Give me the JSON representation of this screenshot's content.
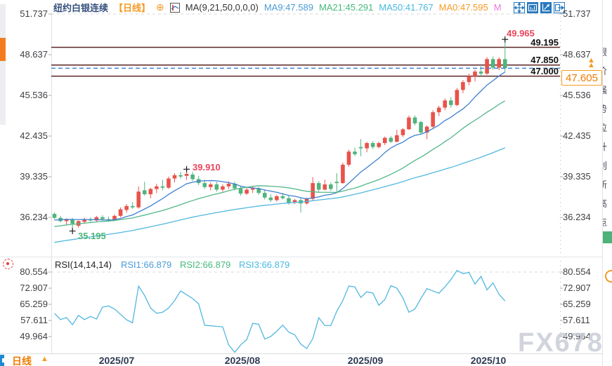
{
  "header": {
    "title": "纽约白银连续",
    "period_tag": "【日线】",
    "ma_label": "MA(9,21,50,0,0,0)",
    "ma_items": [
      {
        "label": "MA9:47.589",
        "color": "#4a9bd6"
      },
      {
        "label": "MA21:45.291",
        "color": "#45b97c"
      },
      {
        "label": "MA50:41.767",
        "color": "#49b8e0"
      },
      {
        "label": "MA0:47.595",
        "color": "#f59a23"
      },
      {
        "label": "M",
        "color": "#e87ad4"
      }
    ]
  },
  "levels": {
    "labels": [
      "49.195",
      "47.850",
      "47.000"
    ],
    "current_label": "47.605"
  },
  "annotations": {
    "session_high": "49.965",
    "july_peak": "39.910",
    "july_low": "35.195"
  },
  "rsi_legend": {
    "header": "RSI(14,14,14)",
    "rsi1": "RSI1:66.879",
    "rsi2": "RSI2:66.879",
    "rsi3": "RSI3:66.879"
  },
  "bottom": {
    "period": "日线",
    "period_arrow": "▲"
  },
  "watermark": "FX678",
  "right_edge_chars": "银价强势拉升创新高点",
  "colors": {
    "up_candle": "#e8534b",
    "down_candle": "#4fb47d",
    "ma9": "#3f7fd0",
    "ma21": "#52b788",
    "ma50": "#52b7e0",
    "rsi_line": "#52b7e0",
    "level_line": "#5c2424",
    "current_price_line": "#3f7fd0",
    "accent_orange": "#f59a23",
    "toolbar_blue": "#2878be"
  },
  "chart_data": {
    "type": "candlestick",
    "symbol": "纽约白银连续",
    "interval": "日线",
    "title": "纽约白银连续【日线】",
    "y_ticks_main": [
      51.737,
      48.637,
      45.536,
      42.435,
      39.335,
      36.234
    ],
    "y_ticks_rsi": [
      80.554,
      72.907,
      65.259,
      57.611,
      49.964
    ],
    "x_axis_labels": [
      "2025/07",
      "2025/08",
      "2025/09",
      "2025/10"
    ],
    "horizontal_levels": [
      49.195,
      47.85,
      47.0
    ],
    "current_price": 47.605,
    "ma_readout": {
      "ma9": 47.589,
      "ma21": 45.291,
      "ma50": 41.767,
      "ma0": 47.595
    },
    "rsi_readout": {
      "rsi1": 66.879,
      "rsi2": 66.879,
      "rsi3": 66.879
    },
    "marker_high": 49.965,
    "marker_peak": 39.91,
    "marker_low": 35.195,
    "ma_periods": [
      9,
      21,
      50
    ],
    "ma_prehistory": {
      "start": 32.2,
      "end": 36.3,
      "count": 50
    },
    "candles_ohlc": [
      [
        36.5,
        36.6,
        36.1,
        36.2
      ],
      [
        36.2,
        36.35,
        35.85,
        35.95
      ],
      [
        35.95,
        36.15,
        35.7,
        36.1
      ],
      [
        36.05,
        36.2,
        35.2,
        35.75
      ],
      [
        35.6,
        36.0,
        35.45,
        35.95
      ],
      [
        35.9,
        36.2,
        35.75,
        36.1
      ],
      [
        36.1,
        36.25,
        35.9,
        36.0
      ],
      [
        36.0,
        36.35,
        35.9,
        36.25
      ],
      [
        36.25,
        36.4,
        36.0,
        36.1
      ],
      [
        36.1,
        36.3,
        35.9,
        36.0
      ],
      [
        36.0,
        36.45,
        35.95,
        36.35
      ],
      [
        36.35,
        37.0,
        36.25,
        36.85
      ],
      [
        36.8,
        37.25,
        36.6,
        37.1
      ],
      [
        37.1,
        37.4,
        36.9,
        37.0
      ],
      [
        37.0,
        38.6,
        36.9,
        38.2
      ],
      [
        38.3,
        38.95,
        37.9,
        38.0
      ],
      [
        38.0,
        38.5,
        37.7,
        38.4
      ],
      [
        38.4,
        38.8,
        38.1,
        38.6
      ],
      [
        38.6,
        39.1,
        38.3,
        38.5
      ],
      [
        38.5,
        39.35,
        38.4,
        39.2
      ],
      [
        39.2,
        39.6,
        38.9,
        39.45
      ],
      [
        39.45,
        39.7,
        39.2,
        39.35
      ],
      [
        39.4,
        39.91,
        39.1,
        39.55
      ],
      [
        39.5,
        39.7,
        39.0,
        39.15
      ],
      [
        39.15,
        39.4,
        38.7,
        38.85
      ],
      [
        38.85,
        39.1,
        38.4,
        38.55
      ],
      [
        38.55,
        38.9,
        38.3,
        38.75
      ],
      [
        38.75,
        38.95,
        38.2,
        38.35
      ],
      [
        38.35,
        38.75,
        38.2,
        38.6
      ],
      [
        38.6,
        39.0,
        38.4,
        38.8
      ],
      [
        38.8,
        38.95,
        38.3,
        38.45
      ],
      [
        38.45,
        38.6,
        37.9,
        38.05
      ],
      [
        38.05,
        38.5,
        37.95,
        38.35
      ],
      [
        38.35,
        38.6,
        38.1,
        38.45
      ],
      [
        38.45,
        38.55,
        37.95,
        38.1
      ],
      [
        38.1,
        38.3,
        37.6,
        37.75
      ],
      [
        37.75,
        38.0,
        37.4,
        37.55
      ],
      [
        37.55,
        37.95,
        37.45,
        37.85
      ],
      [
        37.85,
        38.1,
        37.6,
        37.7
      ],
      [
        37.7,
        37.9,
        37.2,
        37.35
      ],
      [
        37.35,
        37.65,
        37.25,
        37.55
      ],
      [
        37.55,
        37.75,
        36.6,
        37.3
      ],
      [
        37.3,
        37.75,
        37.2,
        37.65
      ],
      [
        37.65,
        39.3,
        37.55,
        38.85
      ],
      [
        38.85,
        39.0,
        38.2,
        38.35
      ],
      [
        38.35,
        39.1,
        38.3,
        38.75
      ],
      [
        38.75,
        38.9,
        38.25,
        38.4
      ],
      [
        38.95,
        39.6,
        38.1,
        38.85
      ],
      [
        38.85,
        40.4,
        38.8,
        40.25
      ],
      [
        40.25,
        41.4,
        40.1,
        41.25
      ],
      [
        41.25,
        41.55,
        40.9,
        41.05
      ],
      [
        41.6,
        42.2,
        40.9,
        41.5
      ],
      [
        41.5,
        42.0,
        41.2,
        41.9
      ],
      [
        41.9,
        42.05,
        41.45,
        41.6
      ],
      [
        41.6,
        42.0,
        41.5,
        41.9
      ],
      [
        41.9,
        42.4,
        41.75,
        42.3
      ],
      [
        42.3,
        42.45,
        41.9,
        42.0
      ],
      [
        42.0,
        42.9,
        41.95,
        42.5
      ],
      [
        42.5,
        43.05,
        42.35,
        42.95
      ],
      [
        42.95,
        44.0,
        42.9,
        43.85
      ],
      [
        43.85,
        44.0,
        43.25,
        43.4
      ],
      [
        43.5,
        43.6,
        42.55,
        42.7
      ],
      [
        42.7,
        43.25,
        42.2,
        43.15
      ],
      [
        43.15,
        44.4,
        43.05,
        44.25
      ],
      [
        44.25,
        44.75,
        43.95,
        44.6
      ],
      [
        44.6,
        45.3,
        44.4,
        45.15
      ],
      [
        45.15,
        45.4,
        44.6,
        44.8
      ],
      [
        44.8,
        46.1,
        44.7,
        45.95
      ],
      [
        45.95,
        46.7,
        45.7,
        46.55
      ],
      [
        46.55,
        47.2,
        46.3,
        47.0
      ],
      [
        47.0,
        47.5,
        46.6,
        47.35
      ],
      [
        47.35,
        47.75,
        47.0,
        47.2
      ],
      [
        47.2,
        48.45,
        47.1,
        48.3
      ],
      [
        48.3,
        48.5,
        47.5,
        47.65
      ],
      [
        47.65,
        48.45,
        47.45,
        48.3
      ],
      [
        48.3,
        49.965,
        47.35,
        47.605
      ]
    ],
    "rsi_values": [
      61,
      58,
      59,
      55.6,
      60,
      58,
      59.5,
      58.3,
      63.9,
      64.5,
      63,
      60.5,
      57.9,
      56.5,
      73.9,
      69.5,
      63.5,
      61,
      61.5,
      63.5,
      67,
      71.6,
      69.8,
      68,
      65.5,
      55.3,
      55.1,
      54.8,
      54.6,
      46,
      42.5,
      46,
      48.5,
      56.2,
      55.8,
      48.8,
      50,
      52.5,
      55.4,
      52,
      50.8,
      46.4,
      44.3,
      49,
      58.9,
      55.2,
      55.2,
      62,
      67,
      73.9,
      73.5,
      68.5,
      71.2,
      70.6,
      64.8,
      67.5,
      74.1,
      72.9,
      68.3,
      61.5,
      63,
      68,
      72.7,
      71.6,
      70.5,
      73.5,
      77,
      81.3,
      79.8,
      80.4,
      74.8,
      78.5,
      72.1,
      75.4,
      70,
      66.879
    ]
  }
}
